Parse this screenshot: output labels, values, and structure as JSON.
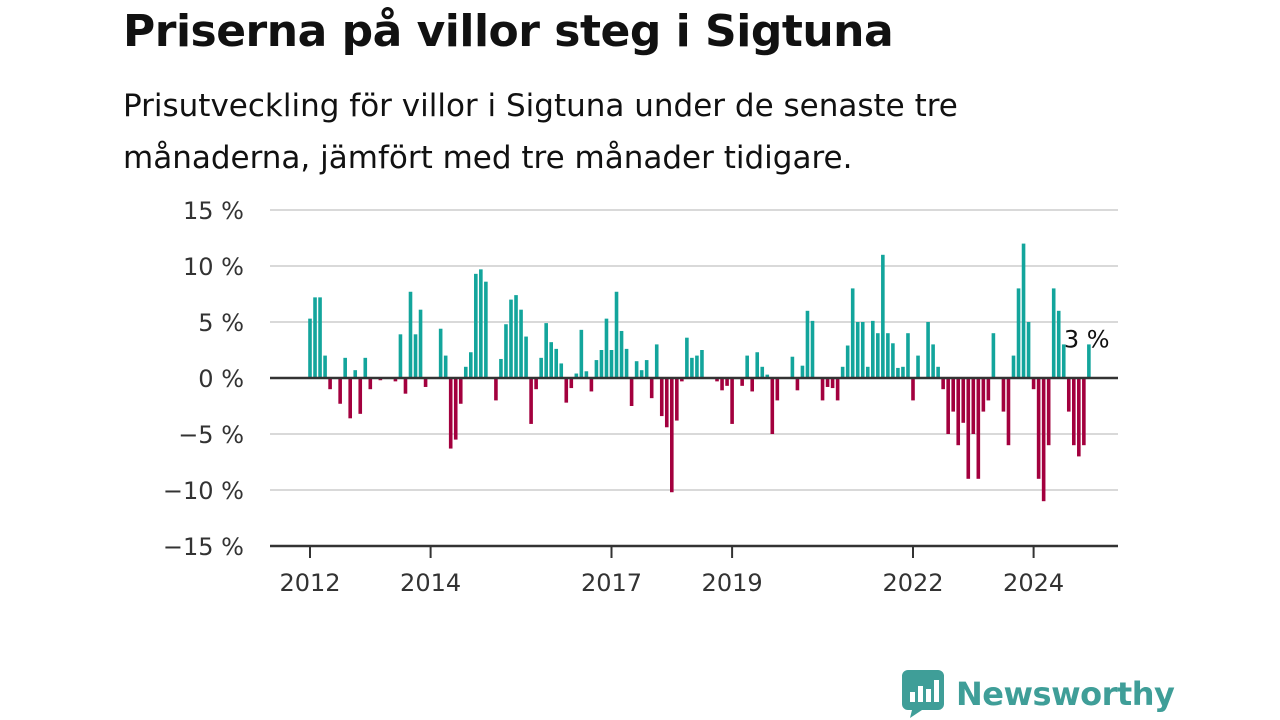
{
  "header": {
    "title": "Priserna på villor steg i Sigtuna",
    "subtitle": "Prisutveckling för villor i Sigtuna under de senaste tre månaderna, jämfört med tre månader tidigare."
  },
  "branding": {
    "logo_text": "Newsworthy",
    "logo_color": "#3f9e98"
  },
  "colors": {
    "positive": "#13a59c",
    "negative": "#a3003e",
    "grid": "#d9d9d9",
    "zero_line": "#333333"
  },
  "chart_data": {
    "type": "bar",
    "ylim": [
      -15,
      15
    ],
    "y_ticks": [
      15,
      10,
      5,
      0,
      -5,
      -10,
      -15
    ],
    "y_tick_labels": [
      "15 %",
      "10 %",
      "5 %",
      "0 %",
      "−5 %",
      "−10 %",
      "−15 %"
    ],
    "x_tick_years": [
      2012,
      2014,
      2017,
      2019,
      2022,
      2024
    ],
    "x_tick_labels": [
      "2012",
      "2014",
      "2017",
      "2019",
      "2022",
      "2024"
    ],
    "start": "2012-01",
    "annotation": {
      "label": "3 %",
      "value": 3
    },
    "values": [
      5.3,
      7.2,
      7.2,
      2.0,
      -1.0,
      0,
      -2.3,
      1.8,
      -3.6,
      0.7,
      -3.2,
      1.8,
      -1.0,
      0,
      -0.2,
      0,
      0,
      -0.3,
      3.9,
      -1.4,
      7.7,
      3.9,
      6.1,
      -0.8,
      0,
      0,
      4.4,
      2.0,
      -6.3,
      -5.5,
      -2.3,
      1.0,
      2.3,
      9.3,
      9.7,
      8.6,
      0,
      -2.0,
      1.7,
      4.8,
      7.0,
      7.4,
      6.1,
      3.7,
      -4.1,
      -1.0,
      1.8,
      4.9,
      3.2,
      2.6,
      1.3,
      -2.2,
      -0.9,
      0.4,
      4.3,
      0.6,
      -1.2,
      1.6,
      2.5,
      5.3,
      2.5,
      7.7,
      4.2,
      2.6,
      -2.5,
      1.5,
      0.7,
      1.6,
      -1.8,
      3.0,
      -3.4,
      -4.4,
      -10.2,
      -3.8,
      -0.3,
      3.6,
      1.8,
      2.0,
      2.5,
      0,
      0,
      -0.3,
      -1.1,
      -0.7,
      -4.1,
      0,
      -0.7,
      2.0,
      -1.2,
      2.3,
      1.0,
      0.3,
      -5.0,
      -2.0,
      0,
      0,
      1.9,
      -1.1,
      1.1,
      6.0,
      5.1,
      0,
      -2.0,
      -0.8,
      -0.9,
      -2.0,
      1.0,
      2.9,
      8.0,
      5.0,
      5.0,
      1.0,
      5.1,
      4.0,
      11.0,
      4.0,
      3.1,
      0.9,
      1.0,
      4.0,
      -2.0,
      2.0,
      0,
      5.0,
      3.0,
      1.0,
      -1.0,
      -5.0,
      -3.0,
      -6.0,
      -4.0,
      -9.0,
      -5.0,
      -9.0,
      -3.0,
      -2.0,
      4.0,
      0,
      -3.0,
      -6.0,
      2.0,
      8.0,
      12.0,
      5.0,
      -1.0,
      -9.0,
      -11.0,
      -6.0,
      8.0,
      6.0,
      3.0,
      -3.0,
      -6.0,
      -7.0,
      -6.0,
      3.0
    ]
  }
}
